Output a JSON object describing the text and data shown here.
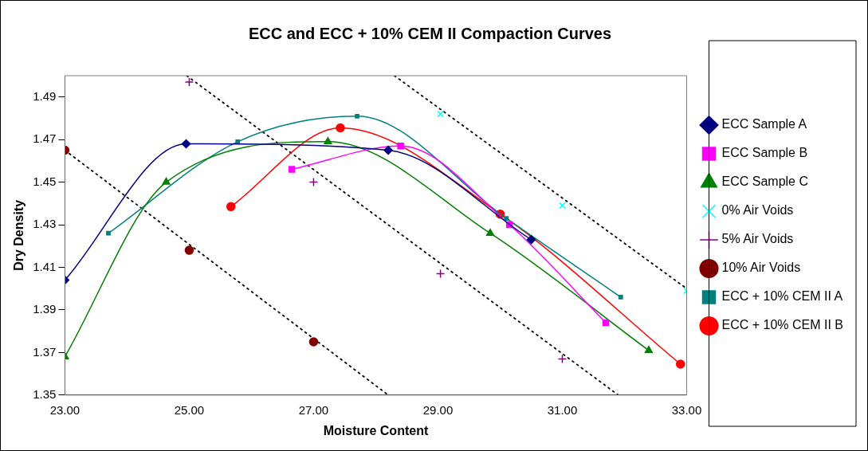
{
  "chart_data": {
    "type": "line",
    "title": "ECC and ECC + 10% CEM II Compaction Curves",
    "xlabel": "Moisture Content",
    "ylabel": "Dry Density",
    "xlim": [
      23,
      33
    ],
    "xticks": [
      {
        "value": 23,
        "label": "23.00"
      },
      {
        "value": 25,
        "label": "25.00"
      },
      {
        "value": 27,
        "label": "27.00"
      },
      {
        "value": 29,
        "label": "29.00"
      },
      {
        "value": 31,
        "label": "31.00"
      },
      {
        "value": 33,
        "label": "33.00"
      }
    ],
    "ylim": [
      1.35,
      1.5
    ],
    "yticks": [
      1.35,
      1.37,
      1.39,
      1.41,
      1.43,
      1.45,
      1.47,
      1.49
    ],
    "grid": false,
    "legend": "right",
    "line_style": "solid",
    "series": [
      {
        "name": "ECC Sample A",
        "marker": "diamond",
        "color": "#000080",
        "x": [
          23,
          24.95,
          28.2,
          30.5
        ],
        "values": [
          1.404,
          1.468,
          1.465,
          1.423
        ]
      },
      {
        "name": "ECC Sample B",
        "marker": "square",
        "color": "#ff00ff",
        "x": [
          26.65,
          28.4,
          30.15,
          31.7
        ],
        "values": [
          1.456,
          1.467,
          1.43,
          1.384
        ]
      },
      {
        "name": "ECC Sample C",
        "marker": "triangle",
        "color": "#008000",
        "x": [
          23,
          24.63,
          27.23,
          29.84,
          32.39
        ],
        "values": [
          1.368,
          1.45,
          1.469,
          1.426,
          1.371
        ]
      },
      {
        "name": "0% Air Voids",
        "type": "scatter",
        "marker": "cross",
        "color": "#00ffff",
        "x": [
          29.04,
          31,
          33
        ],
        "values": [
          1.482,
          1.439,
          1.399
        ]
      },
      {
        "name": "5% Air Voids",
        "type": "scatter",
        "marker": "plus",
        "color": "#800080",
        "x": [
          25,
          27,
          29.04,
          31
        ],
        "values": [
          1.497,
          1.45,
          1.407,
          1.367
        ]
      },
      {
        "name": "10% Air Voids",
        "type": "scatter",
        "marker": "circle",
        "color": "#800000",
        "x": [
          23,
          25,
          27
        ],
        "values": [
          1.465,
          1.418,
          1.375
        ]
      },
      {
        "name": "ECC + 10% CEM II A",
        "marker": "square",
        "color": "#008080",
        "x": [
          23.7,
          25.78,
          27.7,
          30.1,
          31.94
        ],
        "values": [
          1.426,
          1.469,
          1.481,
          1.433,
          1.396
        ]
      },
      {
        "name": "ECC + 10% CEM II B",
        "marker": "circle",
        "color": "#ff0000",
        "x": [
          25.67,
          27.43,
          30,
          32.9
        ],
        "values": [
          1.4385,
          1.4755,
          1.435,
          1.3645
        ]
      },
      {
        "type": "line",
        "marker": "none",
        "line_style": "dotted",
        "color": "#000000",
        "x": [
          28.3,
          33
        ],
        "values": [
          1.5,
          1.4
        ]
      },
      {
        "type": "line",
        "marker": "none",
        "line_style": "dotted",
        "color": "#000000",
        "x": [
          24.96,
          31.9
        ],
        "values": [
          1.5,
          1.35
        ]
      },
      {
        "type": "line",
        "marker": "none",
        "line_style": "dotted",
        "color": "#000000",
        "x": [
          23,
          28.2
        ],
        "values": [
          1.465,
          1.35
        ]
      }
    ]
  }
}
